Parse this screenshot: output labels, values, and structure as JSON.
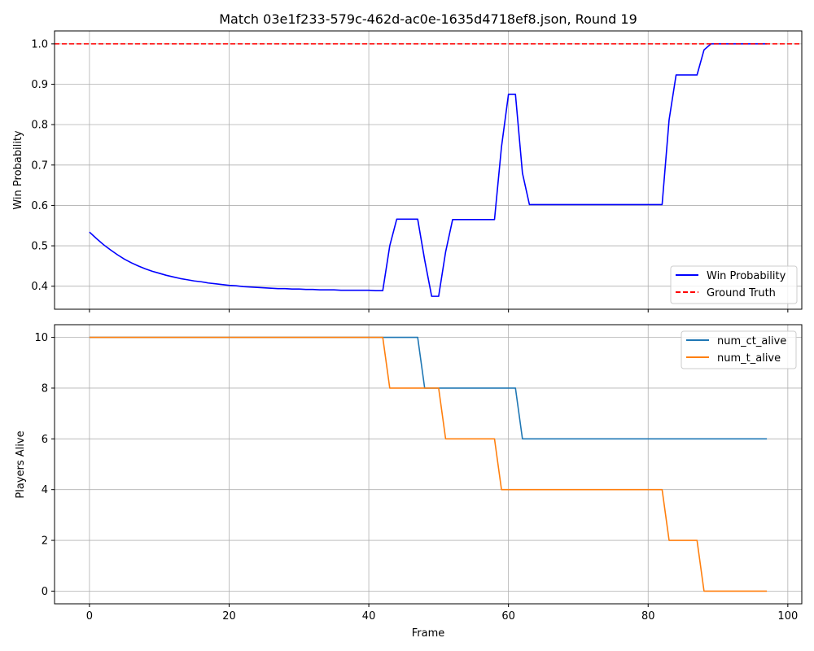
{
  "chart_data": [
    {
      "type": "line",
      "title": "Match 03e1f233-579c-462d-ac0e-1635d4718ef8.json, Round 19",
      "xlabel": "",
      "ylabel": "Win Probability",
      "xlim": [
        -5,
        102
      ],
      "ylim": [
        0.343,
        1.032
      ],
      "xticks": [
        0,
        20,
        40,
        60,
        80,
        100
      ],
      "xtick_labels_visible": false,
      "yticks": [
        0.4,
        0.5,
        0.6,
        0.7,
        0.8,
        0.9,
        1.0
      ],
      "ytick_labels": [
        "0.4",
        "0.5",
        "0.6",
        "0.7",
        "0.8",
        "0.9",
        "1.0"
      ],
      "grid": true,
      "legend_position": "bottom-right",
      "series": [
        {
          "name": "Win Probability",
          "color": "#0000ff",
          "style": "solid",
          "x": [
            0,
            1,
            2,
            3,
            4,
            5,
            6,
            7,
            8,
            9,
            10,
            11,
            12,
            13,
            14,
            15,
            16,
            17,
            18,
            19,
            20,
            21,
            22,
            23,
            24,
            25,
            26,
            27,
            28,
            29,
            30,
            31,
            32,
            33,
            34,
            35,
            36,
            37,
            38,
            39,
            40,
            41,
            42,
            43,
            44,
            45,
            46,
            47,
            48,
            49,
            50,
            51,
            52,
            53,
            54,
            55,
            56,
            57,
            58,
            59,
            60,
            61,
            62,
            63,
            64,
            65,
            66,
            67,
            68,
            69,
            70,
            71,
            72,
            73,
            74,
            75,
            76,
            77,
            78,
            79,
            80,
            81,
            82,
            83,
            84,
            85,
            86,
            87,
            88,
            89,
            90,
            91,
            92,
            93,
            94,
            95,
            96,
            97
          ],
          "y": [
            0.534,
            0.518,
            0.503,
            0.49,
            0.478,
            0.467,
            0.458,
            0.45,
            0.443,
            0.437,
            0.432,
            0.427,
            0.423,
            0.419,
            0.416,
            0.413,
            0.411,
            0.408,
            0.406,
            0.404,
            0.402,
            0.401,
            0.399,
            0.398,
            0.397,
            0.396,
            0.395,
            0.394,
            0.394,
            0.393,
            0.393,
            0.392,
            0.392,
            0.391,
            0.391,
            0.391,
            0.39,
            0.39,
            0.39,
            0.39,
            0.39,
            0.389,
            0.389,
            0.5,
            0.566,
            0.566,
            0.566,
            0.566,
            0.465,
            0.375,
            0.375,
            0.485,
            0.565,
            0.565,
            0.565,
            0.565,
            0.565,
            0.565,
            0.565,
            0.745,
            0.875,
            0.875,
            0.68,
            0.602,
            0.602,
            0.602,
            0.602,
            0.602,
            0.602,
            0.602,
            0.602,
            0.602,
            0.602,
            0.602,
            0.602,
            0.602,
            0.602,
            0.602,
            0.602,
            0.602,
            0.602,
            0.602,
            0.602,
            0.812,
            0.923,
            0.923,
            0.923,
            0.923,
            0.985,
            1.0,
            1.0,
            1.0,
            1.0,
            1.0,
            1.0,
            1.0,
            1.0,
            1.0
          ]
        },
        {
          "name": "Ground Truth",
          "color": "#ff0000",
          "style": "dashed",
          "x": [
            -5,
            102
          ],
          "y": [
            1.0,
            1.0
          ]
        }
      ]
    },
    {
      "type": "line",
      "title": "",
      "xlabel": "Frame",
      "ylabel": "Players Alive",
      "xlim": [
        -5,
        102
      ],
      "ylim": [
        -0.5,
        10.5
      ],
      "xticks": [
        0,
        20,
        40,
        60,
        80,
        100
      ],
      "xtick_labels": [
        "0",
        "20",
        "40",
        "60",
        "80",
        "100"
      ],
      "yticks": [
        0,
        2,
        4,
        6,
        8,
        10
      ],
      "ytick_labels": [
        "0",
        "2",
        "4",
        "6",
        "8",
        "10"
      ],
      "grid": true,
      "legend_position": "top-right",
      "series": [
        {
          "name": "num_ct_alive",
          "color": "#1f77b4",
          "style": "solid",
          "x": [
            0,
            47,
            48,
            61,
            62,
            97
          ],
          "y": [
            10,
            10,
            8,
            8,
            6,
            6
          ]
        },
        {
          "name": "num_t_alive",
          "color": "#ff7f0e",
          "style": "solid",
          "x": [
            0,
            42,
            43,
            50,
            51,
            58,
            59,
            82,
            83,
            87,
            88,
            97
          ],
          "y": [
            10,
            10,
            8,
            8,
            6,
            6,
            4,
            4,
            2,
            2,
            0,
            0
          ]
        }
      ]
    }
  ]
}
